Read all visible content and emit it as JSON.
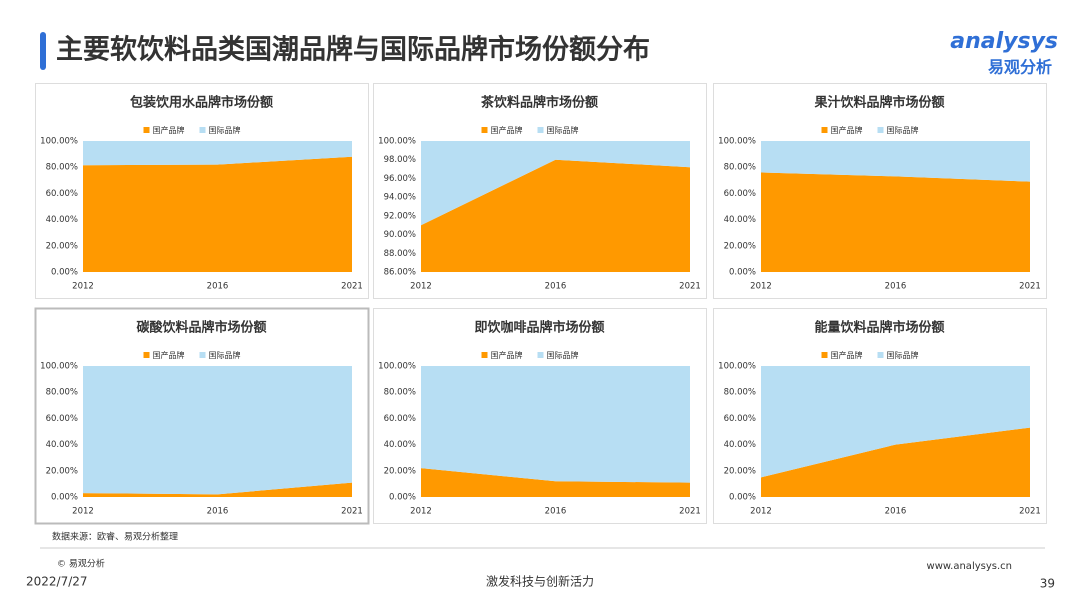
{
  "header": {
    "title": "主要软饮料品类国潮品牌与国际品牌市场份额分布",
    "logo_en": "analysys",
    "logo_cn": "易观分析"
  },
  "chart_data": [
    {
      "type": "area",
      "title": "包装饮用水品牌市场份额",
      "categories": [
        "2012",
        "2016",
        "2021"
      ],
      "series": [
        {
          "name": "国产品牌",
          "color": "#ff9900",
          "values": [
            81.5,
            82,
            88
          ]
        },
        {
          "name": "国际品牌",
          "color": "#b7def3",
          "values": [
            18.5,
            18,
            12
          ]
        }
      ],
      "ylim": [
        0,
        100
      ],
      "yticks": [
        {
          "value": 0,
          "label": "0.00%"
        },
        {
          "value": 20,
          "label": "20.00%"
        },
        {
          "value": 40,
          "label": "40.00%"
        },
        {
          "value": 60,
          "label": "60.00%"
        },
        {
          "value": 80,
          "label": "80.00%"
        },
        {
          "value": 100,
          "label": "100.00%"
        }
      ]
    },
    {
      "type": "area",
      "title": "茶饮料品牌市场份额",
      "categories": [
        "2012",
        "2016",
        "2021"
      ],
      "series": [
        {
          "name": "国产品牌",
          "color": "#ff9900",
          "values": [
            91,
            98,
            97.2
          ]
        },
        {
          "name": "国际品牌",
          "color": "#b7def3",
          "values": [
            9,
            2,
            2.8
          ]
        }
      ],
      "ylim": [
        86,
        100
      ],
      "yticks": [
        {
          "value": 86,
          "label": "86.00%"
        },
        {
          "value": 88,
          "label": "88.00%"
        },
        {
          "value": 90,
          "label": "90.00%"
        },
        {
          "value": 92,
          "label": "92.00%"
        },
        {
          "value": 94,
          "label": "94.00%"
        },
        {
          "value": 96,
          "label": "96.00%"
        },
        {
          "value": 98,
          "label": "98.00%"
        },
        {
          "value": 100,
          "label": "100.00%"
        }
      ]
    },
    {
      "type": "area",
      "title": "果汁饮料品牌市场份额",
      "categories": [
        "2012",
        "2016",
        "2021"
      ],
      "series": [
        {
          "name": "国产品牌",
          "color": "#ff9900",
          "values": [
            76,
            73,
            69
          ]
        },
        {
          "name": "国际品牌",
          "color": "#b7def3",
          "values": [
            24,
            27,
            31
          ]
        }
      ],
      "ylim": [
        0,
        100
      ],
      "yticks": [
        {
          "value": 0,
          "label": "0.00%"
        },
        {
          "value": 20,
          "label": "20.00%"
        },
        {
          "value": 40,
          "label": "40.00%"
        },
        {
          "value": 60,
          "label": "60.00%"
        },
        {
          "value": 80,
          "label": "80.00%"
        },
        {
          "value": 100,
          "label": "100.00%"
        }
      ]
    },
    {
      "type": "area",
      "title": "碳酸饮料品牌市场份额",
      "categories": [
        "2012",
        "2016",
        "2021"
      ],
      "series": [
        {
          "name": "国产品牌",
          "color": "#ff9900",
          "values": [
            3,
            2,
            11
          ]
        },
        {
          "name": "国际品牌",
          "color": "#b7def3",
          "values": [
            97,
            98,
            89
          ]
        }
      ],
      "ylim": [
        0,
        100
      ],
      "yticks": [
        {
          "value": 0,
          "label": "0.00%"
        },
        {
          "value": 20,
          "label": "20.00%"
        },
        {
          "value": 40,
          "label": "40.00%"
        },
        {
          "value": 60,
          "label": "60.00%"
        },
        {
          "value": 80,
          "label": "80.00%"
        },
        {
          "value": 100,
          "label": "100.00%"
        }
      ]
    },
    {
      "type": "area",
      "title": "即饮咖啡品牌市场份额",
      "categories": [
        "2012",
        "2016",
        "2021"
      ],
      "series": [
        {
          "name": "国产品牌",
          "color": "#ff9900",
          "values": [
            22,
            12,
            11
          ]
        },
        {
          "name": "国际品牌",
          "color": "#b7def3",
          "values": [
            78,
            88,
            89
          ]
        }
      ],
      "ylim": [
        0,
        100
      ],
      "yticks": [
        {
          "value": 0,
          "label": "0.00%"
        },
        {
          "value": 20,
          "label": "20.00%"
        },
        {
          "value": 40,
          "label": "40.00%"
        },
        {
          "value": 60,
          "label": "60.00%"
        },
        {
          "value": 80,
          "label": "80.00%"
        },
        {
          "value": 100,
          "label": "100.00%"
        }
      ]
    },
    {
      "type": "area",
      "title": "能量饮料品牌市场份额",
      "categories": [
        "2012",
        "2016",
        "2021"
      ],
      "series": [
        {
          "name": "国产品牌",
          "color": "#ff9900",
          "values": [
            15,
            40,
            53
          ]
        },
        {
          "name": "国际品牌",
          "color": "#b7def3",
          "values": [
            85,
            60,
            47
          ]
        }
      ],
      "ylim": [
        0,
        100
      ],
      "yticks": [
        {
          "value": 0,
          "label": "0.00%"
        },
        {
          "value": 20,
          "label": "20.00%"
        },
        {
          "value": 40,
          "label": "40.00%"
        },
        {
          "value": 60,
          "label": "60.00%"
        },
        {
          "value": 80,
          "label": "80.00%"
        },
        {
          "value": 100,
          "label": "100.00%"
        }
      ]
    }
  ],
  "footer": {
    "source": "数据来源：欧睿、易观分析整理",
    "copyright": "© 易观分析",
    "date": "2022/7/27",
    "slogan": "激发科技与创新活力",
    "website": "www.analysys.cn",
    "page": "39"
  }
}
